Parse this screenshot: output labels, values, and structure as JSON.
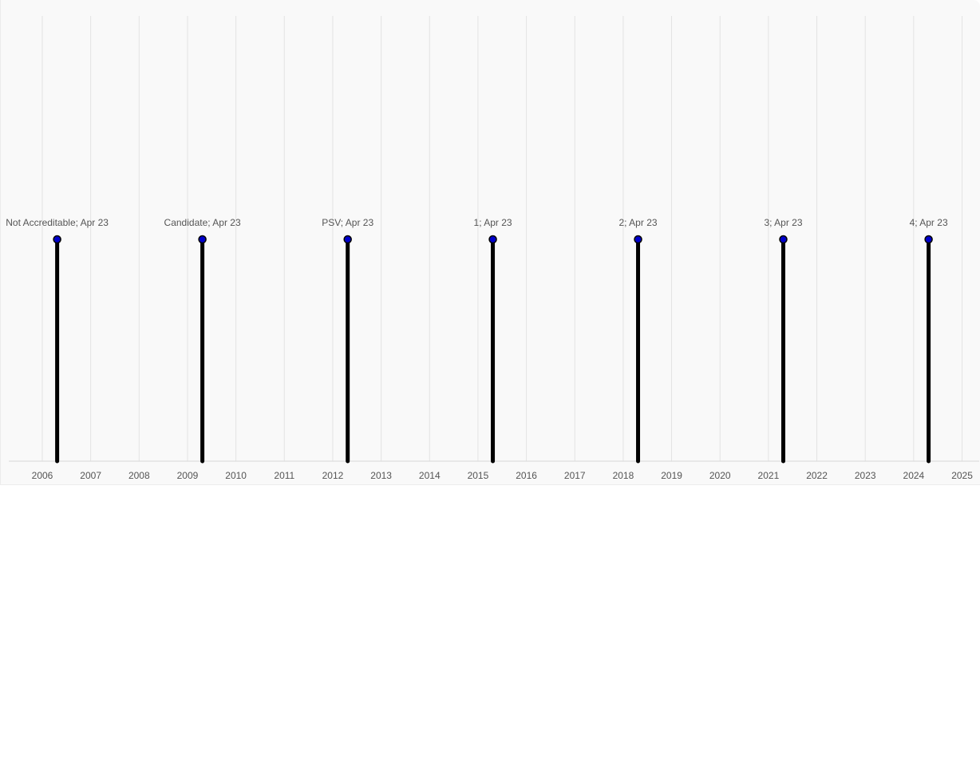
{
  "chart_data": {
    "type": "timeline",
    "title": "",
    "xlabel": "",
    "ylabel": "",
    "x_axis": {
      "type": "date",
      "range": [
        "2005-06-01",
        "2025-04-01"
      ],
      "tick_labels": [
        "2006",
        "2007",
        "2008",
        "2009",
        "2010",
        "2011",
        "2012",
        "2013",
        "2014",
        "2015",
        "2016",
        "2017",
        "2018",
        "2019",
        "2020",
        "2021",
        "2022",
        "2023",
        "2024",
        "2025"
      ]
    },
    "grid": true,
    "events": [
      {
        "date": "2006-04-23",
        "label": "Not Accreditable; Apr 23"
      },
      {
        "date": "2009-04-23",
        "label": "Candidate; Apr 23"
      },
      {
        "date": "2012-04-23",
        "label": "PSV; Apr 23"
      },
      {
        "date": "2015-04-23",
        "label": "1; Apr 23"
      },
      {
        "date": "2018-04-23",
        "label": "2; Apr 23"
      },
      {
        "date": "2021-04-23",
        "label": "3; Apr 23"
      },
      {
        "date": "2024-04-23",
        "label": "4; Apr 23"
      }
    ],
    "colors": {
      "marker": "#0000cc",
      "stem": "#000000",
      "grid": "#e3e3e3",
      "text": "#555555"
    }
  }
}
